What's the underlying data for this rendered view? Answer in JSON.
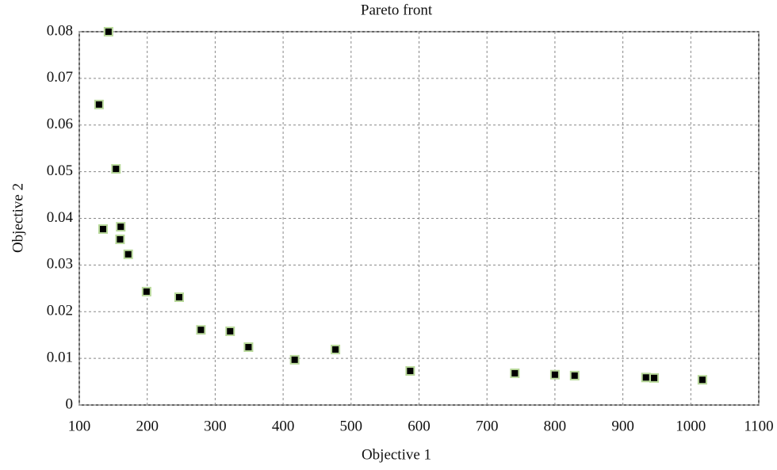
{
  "chart_data": {
    "type": "scatter",
    "title": "Pareto front",
    "x_label": "Objective 1",
    "y_label": "Objective 2",
    "series": [
      {
        "color": "#000000",
        "x": [
          143,
          129,
          154,
          135,
          161,
          160,
          172,
          199,
          247,
          279,
          322,
          349,
          417,
          477,
          587,
          741,
          800,
          829,
          934,
          946,
          1017
        ],
        "values": [
          0.08,
          0.0644,
          0.0506,
          0.0377,
          0.0382,
          0.0355,
          0.0323,
          0.0243,
          0.0231,
          0.0161,
          0.0158,
          0.0124,
          0.0097,
          0.0119,
          0.0073,
          0.0068,
          0.0065,
          0.0063,
          0.0059,
          0.0058,
          0.0054
        ]
      }
    ],
    "xlim": [
      100,
      1100
    ],
    "xticks": [
      100,
      200,
      300,
      400,
      500,
      600,
      700,
      800,
      900,
      1000,
      1100
    ],
    "ylim": [
      0,
      0.08
    ],
    "yticks": [
      0,
      0.01,
      0.02,
      0.03,
      0.04,
      0.05,
      0.06,
      0.07,
      0.08
    ],
    "grid": true
  }
}
